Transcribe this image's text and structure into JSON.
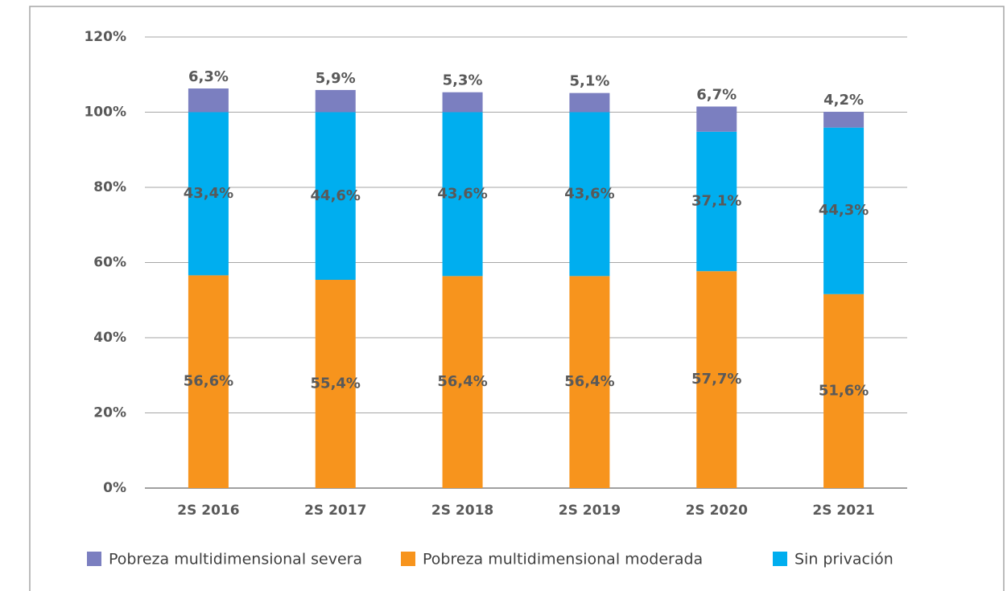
{
  "chart_data": {
    "type": "stacked_bar",
    "categories": [
      "2S 2016",
      "2S 2017",
      "2S 2018",
      "2S 2019",
      "2S 2020",
      "2S 2021"
    ],
    "series": [
      {
        "name": "Pobreza multidimensional severa",
        "color": "#7b7fc0",
        "values": [
          6.3,
          5.9,
          5.3,
          5.1,
          6.7,
          4.2
        ],
        "value_labels": [
          "6,3%",
          "5,9%",
          "5,3%",
          "5,1%",
          "6,7%",
          "4,2%"
        ]
      },
      {
        "name": "Pobreza multidimensional moderada",
        "color": "#f7941d",
        "values": [
          56.6,
          55.4,
          56.4,
          56.4,
          57.7,
          51.6
        ],
        "value_labels": [
          "56,6%",
          "55,4%",
          "56,4%",
          "56,4%",
          "57,7%",
          "51,6%"
        ]
      },
      {
        "name": "Sin privación",
        "color": "#00aeef",
        "values": [
          43.4,
          44.6,
          43.6,
          43.6,
          37.1,
          44.3
        ],
        "value_labels": [
          "43,4%",
          "44,6%",
          "43,6%",
          "43,6%",
          "37,1%",
          "44,3%"
        ]
      }
    ],
    "ylim": [
      0,
      120
    ],
    "yticks": [
      {
        "value": 0,
        "label": "0%"
      },
      {
        "value": 20,
        "label": "20%"
      },
      {
        "value": 40,
        "label": "40%"
      },
      {
        "value": 60,
        "label": "60%"
      },
      {
        "value": 80,
        "label": "80%"
      },
      {
        "value": 100,
        "label": "100%"
      },
      {
        "value": 120,
        "label": "120%"
      }
    ],
    "grid": true,
    "legend": "bottom"
  }
}
